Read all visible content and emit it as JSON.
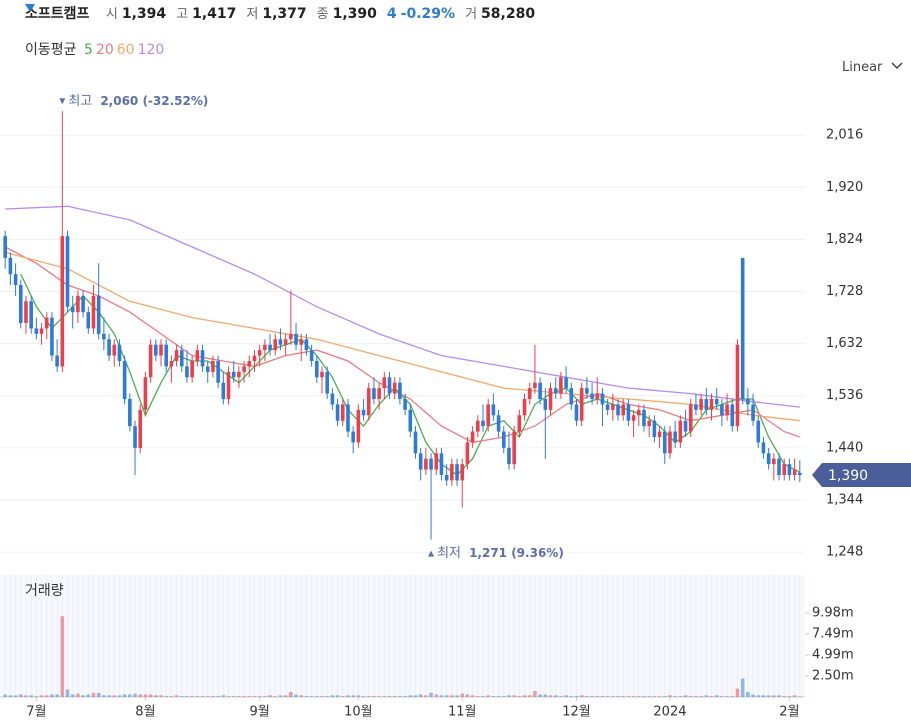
{
  "header": {
    "name": "소프트캠프",
    "items": [
      {
        "label": "시",
        "value": "1,394"
      },
      {
        "label": "고",
        "value": "1,417"
      },
      {
        "label": "저",
        "value": "1,377"
      },
      {
        "label": "종",
        "value": "1,390"
      }
    ],
    "change": "4",
    "change_pct": "-0.29%",
    "volume_label": "거",
    "volume": "58,280"
  },
  "chart_data": {
    "type": "candlestick",
    "legend_title": "이동평균",
    "scale_label": "Linear",
    "up_color": "#e8414b",
    "down_color": "#2d7bd9",
    "grid": true,
    "xlim": [
      -1,
      154
    ],
    "xticks": [
      {
        "value": 6,
        "label": "7월"
      },
      {
        "value": 27,
        "label": "8월"
      },
      {
        "value": 49,
        "label": "9월"
      },
      {
        "value": 68,
        "label": "10월"
      },
      {
        "value": 88,
        "label": "11월"
      },
      {
        "value": 110,
        "label": "12월"
      },
      {
        "value": 128,
        "label": "2024"
      },
      {
        "value": 151,
        "label": "2월"
      }
    ],
    "ylim": [
      1215,
      2090
    ],
    "yticks": [
      {
        "value": 1248,
        "label": "1,248"
      },
      {
        "value": 1344,
        "label": "1,344"
      },
      {
        "value": 1440,
        "label": "1,440"
      },
      {
        "value": 1536,
        "label": "1,536"
      },
      {
        "value": 1632,
        "label": "1,632"
      },
      {
        "value": 1728,
        "label": "1,728"
      },
      {
        "value": 1824,
        "label": "1,824"
      },
      {
        "value": 1920,
        "label": "1,920"
      },
      {
        "value": 2016,
        "label": "2,016"
      }
    ],
    "last_price": {
      "value": 1390,
      "label": "1,390"
    },
    "annotations": [
      {
        "kind": "high",
        "index": 11,
        "value": 2060,
        "label": "최고",
        "text": "2,060 (-32.52%)"
      },
      {
        "kind": "low",
        "index": 82,
        "value": 1271,
        "label": "최저",
        "text": "1,271 (9.36%)"
      }
    ],
    "candles": [
      [
        1830,
        1840,
        1770,
        1790
      ],
      [
        1790,
        1800,
        1740,
        1760
      ],
      [
        1760,
        1780,
        1720,
        1740
      ],
      [
        1740,
        1750,
        1660,
        1670
      ],
      [
        1670,
        1720,
        1650,
        1710
      ],
      [
        1710,
        1720,
        1650,
        1660
      ],
      [
        1660,
        1680,
        1640,
        1650
      ],
      [
        1650,
        1670,
        1630,
        1660
      ],
      [
        1660,
        1690,
        1640,
        1680
      ],
      [
        1680,
        1690,
        1600,
        1610
      ],
      [
        1610,
        1640,
        1580,
        1590
      ],
      [
        1590,
        2060,
        1580,
        1830
      ],
      [
        1830,
        1840,
        1690,
        1700
      ],
      [
        1700,
        1720,
        1660,
        1690
      ],
      [
        1690,
        1730,
        1670,
        1720
      ],
      [
        1720,
        1730,
        1680,
        1690
      ],
      [
        1690,
        1700,
        1650,
        1660
      ],
      [
        1660,
        1740,
        1650,
        1720
      ],
      [
        1720,
        1780,
        1640,
        1650
      ],
      [
        1650,
        1680,
        1620,
        1640
      ],
      [
        1640,
        1650,
        1600,
        1610
      ],
      [
        1610,
        1640,
        1590,
        1630
      ],
      [
        1630,
        1640,
        1590,
        1600
      ],
      [
        1600,
        1610,
        1520,
        1530
      ],
      [
        1530,
        1540,
        1470,
        1480
      ],
      [
        1480,
        1490,
        1390,
        1440
      ],
      [
        1440,
        1520,
        1430,
        1510
      ],
      [
        1510,
        1580,
        1500,
        1570
      ],
      [
        1570,
        1640,
        1560,
        1630
      ],
      [
        1630,
        1640,
        1600,
        1610
      ],
      [
        1610,
        1640,
        1590,
        1630
      ],
      [
        1630,
        1640,
        1580,
        1590
      ],
      [
        1590,
        1610,
        1560,
        1600
      ],
      [
        1600,
        1630,
        1590,
        1620
      ],
      [
        1620,
        1630,
        1580,
        1590
      ],
      [
        1590,
        1620,
        1560,
        1570
      ],
      [
        1570,
        1610,
        1560,
        1600
      ],
      [
        1600,
        1630,
        1590,
        1620
      ],
      [
        1620,
        1630,
        1580,
        1590
      ],
      [
        1590,
        1600,
        1560,
        1580
      ],
      [
        1580,
        1610,
        1570,
        1600
      ],
      [
        1600,
        1610,
        1550,
        1560
      ],
      [
        1560,
        1580,
        1520,
        1530
      ],
      [
        1530,
        1590,
        1520,
        1580
      ],
      [
        1580,
        1600,
        1560,
        1570
      ],
      [
        1570,
        1590,
        1550,
        1580
      ],
      [
        1580,
        1600,
        1560,
        1590
      ],
      [
        1590,
        1610,
        1570,
        1600
      ],
      [
        1600,
        1620,
        1580,
        1610
      ],
      [
        1610,
        1630,
        1590,
        1620
      ],
      [
        1620,
        1640,
        1600,
        1630
      ],
      [
        1630,
        1650,
        1610,
        1620
      ],
      [
        1620,
        1650,
        1610,
        1640
      ],
      [
        1640,
        1660,
        1620,
        1630
      ],
      [
        1630,
        1650,
        1610,
        1640
      ],
      [
        1640,
        1730,
        1630,
        1650
      ],
      [
        1650,
        1670,
        1620,
        1630
      ],
      [
        1630,
        1650,
        1600,
        1640
      ],
      [
        1640,
        1650,
        1610,
        1620
      ],
      [
        1620,
        1630,
        1590,
        1600
      ],
      [
        1600,
        1610,
        1560,
        1570
      ],
      [
        1570,
        1590,
        1540,
        1580
      ],
      [
        1580,
        1590,
        1530,
        1540
      ],
      [
        1540,
        1550,
        1510,
        1520
      ],
      [
        1520,
        1530,
        1480,
        1490
      ],
      [
        1490,
        1530,
        1480,
        1520
      ],
      [
        1520,
        1530,
        1460,
        1470
      ],
      [
        1470,
        1480,
        1430,
        1450
      ],
      [
        1450,
        1520,
        1440,
        1510
      ],
      [
        1510,
        1530,
        1490,
        1500
      ],
      [
        1500,
        1560,
        1490,
        1550
      ],
      [
        1550,
        1570,
        1520,
        1530
      ],
      [
        1530,
        1560,
        1510,
        1550
      ],
      [
        1550,
        1580,
        1530,
        1570
      ],
      [
        1570,
        1580,
        1530,
        1540
      ],
      [
        1540,
        1570,
        1530,
        1560
      ],
      [
        1560,
        1570,
        1520,
        1530
      ],
      [
        1530,
        1540,
        1500,
        1510
      ],
      [
        1510,
        1520,
        1460,
        1470
      ],
      [
        1470,
        1480,
        1420,
        1430
      ],
      [
        1430,
        1440,
        1380,
        1400
      ],
      [
        1400,
        1440,
        1390,
        1420
      ],
      [
        1420,
        1430,
        1271,
        1400
      ],
      [
        1400,
        1440,
        1390,
        1430
      ],
      [
        1430,
        1440,
        1380,
        1390
      ],
      [
        1390,
        1410,
        1370,
        1380
      ],
      [
        1380,
        1420,
        1370,
        1410
      ],
      [
        1410,
        1420,
        1370,
        1380
      ],
      [
        1380,
        1420,
        1330,
        1410
      ],
      [
        1410,
        1460,
        1400,
        1450
      ],
      [
        1450,
        1480,
        1440,
        1470
      ],
      [
        1470,
        1500,
        1460,
        1490
      ],
      [
        1490,
        1520,
        1470,
        1480
      ],
      [
        1480,
        1530,
        1470,
        1520
      ],
      [
        1520,
        1540,
        1490,
        1500
      ],
      [
        1500,
        1510,
        1460,
        1470
      ],
      [
        1470,
        1480,
        1430,
        1440
      ],
      [
        1440,
        1470,
        1400,
        1410
      ],
      [
        1410,
        1480,
        1400,
        1470
      ],
      [
        1470,
        1510,
        1460,
        1500
      ],
      [
        1500,
        1540,
        1490,
        1530
      ],
      [
        1530,
        1560,
        1520,
        1550
      ],
      [
        1550,
        1630,
        1540,
        1560
      ],
      [
        1560,
        1570,
        1520,
        1530
      ],
      [
        1530,
        1550,
        1420,
        1510
      ],
      [
        1510,
        1560,
        1500,
        1550
      ],
      [
        1550,
        1570,
        1530,
        1540
      ],
      [
        1540,
        1580,
        1530,
        1570
      ],
      [
        1570,
        1590,
        1540,
        1550
      ],
      [
        1550,
        1560,
        1510,
        1520
      ],
      [
        1520,
        1530,
        1480,
        1490
      ],
      [
        1490,
        1560,
        1480,
        1550
      ],
      [
        1550,
        1570,
        1530,
        1540
      ],
      [
        1540,
        1560,
        1520,
        1530
      ],
      [
        1530,
        1570,
        1520,
        1540
      ],
      [
        1540,
        1550,
        1480,
        1520
      ],
      [
        1520,
        1530,
        1500,
        1510
      ],
      [
        1510,
        1540,
        1490,
        1520
      ],
      [
        1520,
        1530,
        1490,
        1500
      ],
      [
        1500,
        1530,
        1490,
        1520
      ],
      [
        1520,
        1530,
        1480,
        1490
      ],
      [
        1490,
        1510,
        1460,
        1500
      ],
      [
        1500,
        1520,
        1480,
        1510
      ],
      [
        1510,
        1520,
        1470,
        1480
      ],
      [
        1480,
        1500,
        1460,
        1490
      ],
      [
        1490,
        1500,
        1450,
        1460
      ],
      [
        1460,
        1480,
        1440,
        1470
      ],
      [
        1470,
        1480,
        1410,
        1430
      ],
      [
        1430,
        1480,
        1420,
        1470
      ],
      [
        1470,
        1490,
        1440,
        1450
      ],
      [
        1450,
        1500,
        1440,
        1490
      ],
      [
        1490,
        1510,
        1460,
        1470
      ],
      [
        1470,
        1530,
        1460,
        1520
      ],
      [
        1520,
        1540,
        1500,
        1510
      ],
      [
        1510,
        1540,
        1500,
        1530
      ],
      [
        1530,
        1550,
        1500,
        1510
      ],
      [
        1510,
        1540,
        1490,
        1530
      ],
      [
        1530,
        1550,
        1510,
        1520
      ],
      [
        1520,
        1530,
        1480,
        1500
      ],
      [
        1500,
        1540,
        1490,
        1520
      ],
      [
        1520,
        1530,
        1470,
        1480
      ],
      [
        1480,
        1640,
        1470,
        1630
      ],
      [
        1790,
        1790,
        1520,
        1530
      ],
      [
        1530,
        1550,
        1500,
        1520
      ],
      [
        1520,
        1540,
        1480,
        1490
      ],
      [
        1490,
        1500,
        1440,
        1450
      ],
      [
        1450,
        1460,
        1420,
        1430
      ],
      [
        1430,
        1440,
        1400,
        1410
      ],
      [
        1410,
        1430,
        1380,
        1420
      ],
      [
        1420,
        1430,
        1380,
        1390
      ],
      [
        1390,
        1420,
        1380,
        1410
      ],
      [
        1410,
        1420,
        1380,
        1390
      ],
      [
        1390,
        1420,
        1380,
        1400
      ],
      [
        1394,
        1417,
        1377,
        1390
      ]
    ],
    "series": [
      {
        "name": "5",
        "color": "#4caf50",
        "x": [
          3,
          6,
          9,
          12,
          15,
          18,
          21,
          24,
          27,
          30,
          33,
          36,
          39,
          42,
          45,
          48,
          51,
          54,
          57,
          60,
          63,
          66,
          69,
          72,
          75,
          78,
          81,
          84,
          87,
          90,
          93,
          96,
          99,
          102,
          105,
          108,
          111,
          114,
          117,
          120,
          123,
          126,
          129,
          132,
          135,
          138,
          141,
          144,
          147,
          150,
          153
        ],
        "values": [
          1760,
          1700,
          1660,
          1690,
          1720,
          1690,
          1650,
          1580,
          1500,
          1560,
          1610,
          1600,
          1600,
          1580,
          1560,
          1590,
          1620,
          1630,
          1640,
          1610,
          1570,
          1510,
          1480,
          1520,
          1550,
          1520,
          1450,
          1410,
          1390,
          1420,
          1480,
          1490,
          1460,
          1520,
          1540,
          1550,
          1520,
          1530,
          1520,
          1510,
          1500,
          1480,
          1450,
          1470,
          1510,
          1520,
          1530,
          1530,
          1460,
          1410,
          1395
        ]
      },
      {
        "name": "20",
        "color": "#ee7a7f",
        "x": [
          0,
          6,
          12,
          18,
          24,
          30,
          36,
          42,
          48,
          54,
          60,
          66,
          72,
          78,
          84,
          90,
          96,
          102,
          108,
          114,
          120,
          126,
          132,
          138,
          144,
          150,
          153
        ],
        "values": [
          1810,
          1780,
          1740,
          1720,
          1690,
          1650,
          1610,
          1600,
          1590,
          1610,
          1620,
          1600,
          1560,
          1530,
          1480,
          1450,
          1460,
          1480,
          1520,
          1540,
          1520,
          1510,
          1490,
          1500,
          1510,
          1470,
          1460
        ]
      },
      {
        "name": "60",
        "color": "#f5a86a",
        "x": [
          0,
          12,
          24,
          36,
          48,
          60,
          72,
          84,
          96,
          108,
          120,
          132,
          144,
          153
        ],
        "values": [
          1800,
          1770,
          1710,
          1680,
          1660,
          1640,
          1610,
          1580,
          1550,
          1540,
          1530,
          1520,
          1500,
          1490
        ]
      },
      {
        "name": "120",
        "color": "#b98af0",
        "x": [
          0,
          12,
          24,
          36,
          48,
          60,
          72,
          84,
          96,
          108,
          120,
          132,
          144,
          153
        ],
        "values": [
          1880,
          1885,
          1860,
          1810,
          1760,
          1700,
          1650,
          1610,
          1590,
          1570,
          1550,
          1540,
          1525,
          1515
        ]
      }
    ],
    "volume": {
      "title": "거래량",
      "ylim": [
        0,
        14.5
      ],
      "yticks": [
        {
          "value": 2.5,
          "label": "2.50m"
        },
        {
          "value": 4.99,
          "label": "4.99m"
        },
        {
          "value": 7.49,
          "label": "7.49m"
        },
        {
          "value": 9.98,
          "label": "9.98m"
        }
      ],
      "values": [
        0.3,
        0.2,
        0.2,
        0.3,
        0.2,
        0.2,
        0.1,
        0.2,
        0.2,
        0.3,
        0.3,
        9.6,
        0.9,
        0.3,
        0.4,
        0.2,
        0.3,
        0.5,
        0.5,
        0.2,
        0.2,
        0.2,
        0.2,
        0.3,
        0.3,
        0.4,
        0.3,
        0.3,
        0.3,
        0.2,
        0.2,
        0.1,
        0.1,
        0.2,
        0.1,
        0.1,
        0.1,
        0.1,
        0.1,
        0.1,
        0.1,
        0.1,
        0.2,
        0.1,
        0.1,
        0.1,
        0.1,
        0.1,
        0.1,
        0.1,
        0.1,
        0.2,
        0.1,
        0.2,
        0.2,
        0.6,
        0.3,
        0.2,
        0.1,
        0.1,
        0.1,
        0.1,
        0.1,
        0.2,
        0.2,
        0.1,
        0.2,
        0.2,
        0.2,
        0.1,
        0.1,
        0.1,
        0.1,
        0.1,
        0.1,
        0.1,
        0.1,
        0.1,
        0.2,
        0.2,
        0.3,
        0.2,
        0.5,
        0.3,
        0.2,
        0.2,
        0.2,
        0.2,
        0.4,
        0.3,
        0.2,
        0.1,
        0.1,
        0.2,
        0.1,
        0.1,
        0.1,
        0.2,
        0.2,
        0.1,
        0.2,
        0.2,
        0.7,
        0.3,
        0.3,
        0.2,
        0.2,
        0.1,
        0.2,
        0.1,
        0.1,
        0.2,
        0.1,
        0.1,
        0.1,
        0.1,
        0.1,
        0.1,
        0.1,
        0.1,
        0.1,
        0.1,
        0.1,
        0.1,
        0.1,
        0.1,
        0.1,
        0.1,
        0.2,
        0.1,
        0.1,
        0.2,
        0.1,
        0.1,
        0.1,
        0.2,
        0.1,
        0.2,
        0.1,
        0.1,
        0.1,
        1.0,
        2.2,
        0.6,
        0.3,
        0.2,
        0.2,
        0.2,
        0.2,
        0.2,
        0.1,
        0.1,
        0.2,
        0.06
      ]
    }
  }
}
